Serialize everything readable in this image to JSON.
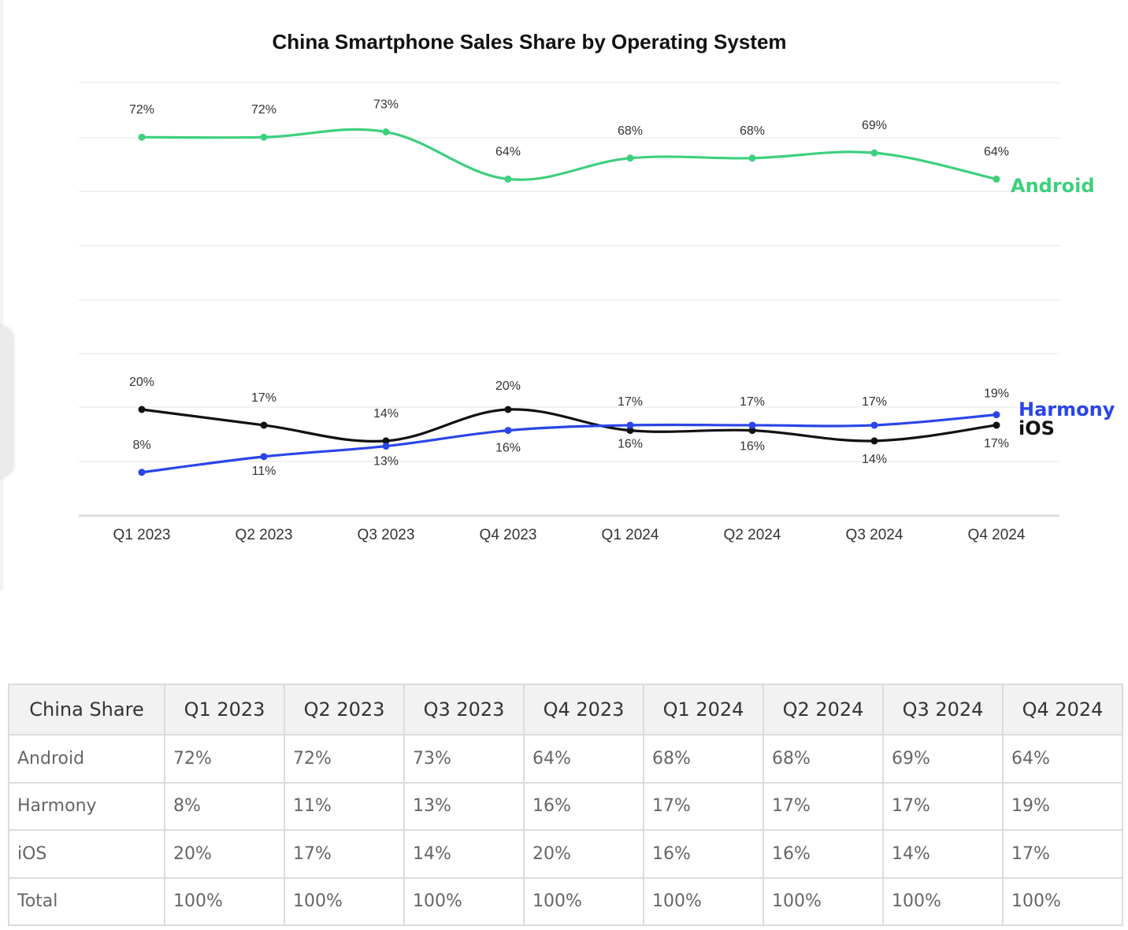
{
  "chart_data": {
    "type": "line",
    "title": "China Smartphone Sales Share by Operating System",
    "categories": [
      "Q1 2023",
      "Q2 2023",
      "Q3 2023",
      "Q4 2023",
      "Q1 2024",
      "Q2 2024",
      "Q3 2024",
      "Q4 2024"
    ],
    "ylim": [
      0,
      80
    ],
    "grid": true,
    "series": [
      {
        "name": "Android",
        "color": "#3ecf7d",
        "values": [
          72,
          72,
          73,
          64,
          68,
          68,
          69,
          64
        ],
        "labels": [
          "72%",
          "72%",
          "73%",
          "64%",
          "68%",
          "68%",
          "69%",
          "64%"
        ]
      },
      {
        "name": "Harmony",
        "color": "#2a45e8",
        "values": [
          8,
          11,
          13,
          16,
          17,
          17,
          17,
          19
        ],
        "labels": [
          "8%",
          "11%",
          "13%",
          "16%",
          "17%",
          "17%",
          "17%",
          "19%"
        ]
      },
      {
        "name": "iOS",
        "color": "#111111",
        "values": [
          20,
          17,
          14,
          20,
          16,
          16,
          14,
          17
        ],
        "labels": [
          "20%",
          "17%",
          "14%",
          "20%",
          "16%",
          "16%",
          "14%",
          "17%"
        ]
      }
    ]
  },
  "table": {
    "headers": [
      "China Share",
      "Q1 2023",
      "Q2 2023",
      "Q3 2023",
      "Q4 2023",
      "Q1 2024",
      "Q2 2024",
      "Q3 2024",
      "Q4 2024"
    ],
    "rows": [
      [
        "Android",
        "72%",
        "72%",
        "73%",
        "64%",
        "68%",
        "68%",
        "69%",
        "64%"
      ],
      [
        "Harmony",
        "8%",
        "11%",
        "13%",
        "16%",
        "17%",
        "17%",
        "17%",
        "19%"
      ],
      [
        "iOS",
        "20%",
        "17%",
        "14%",
        "20%",
        "16%",
        "16%",
        "14%",
        "17%"
      ],
      [
        "Total",
        "100%",
        "100%",
        "100%",
        "100%",
        "100%",
        "100%",
        "100%",
        "100%"
      ]
    ]
  }
}
